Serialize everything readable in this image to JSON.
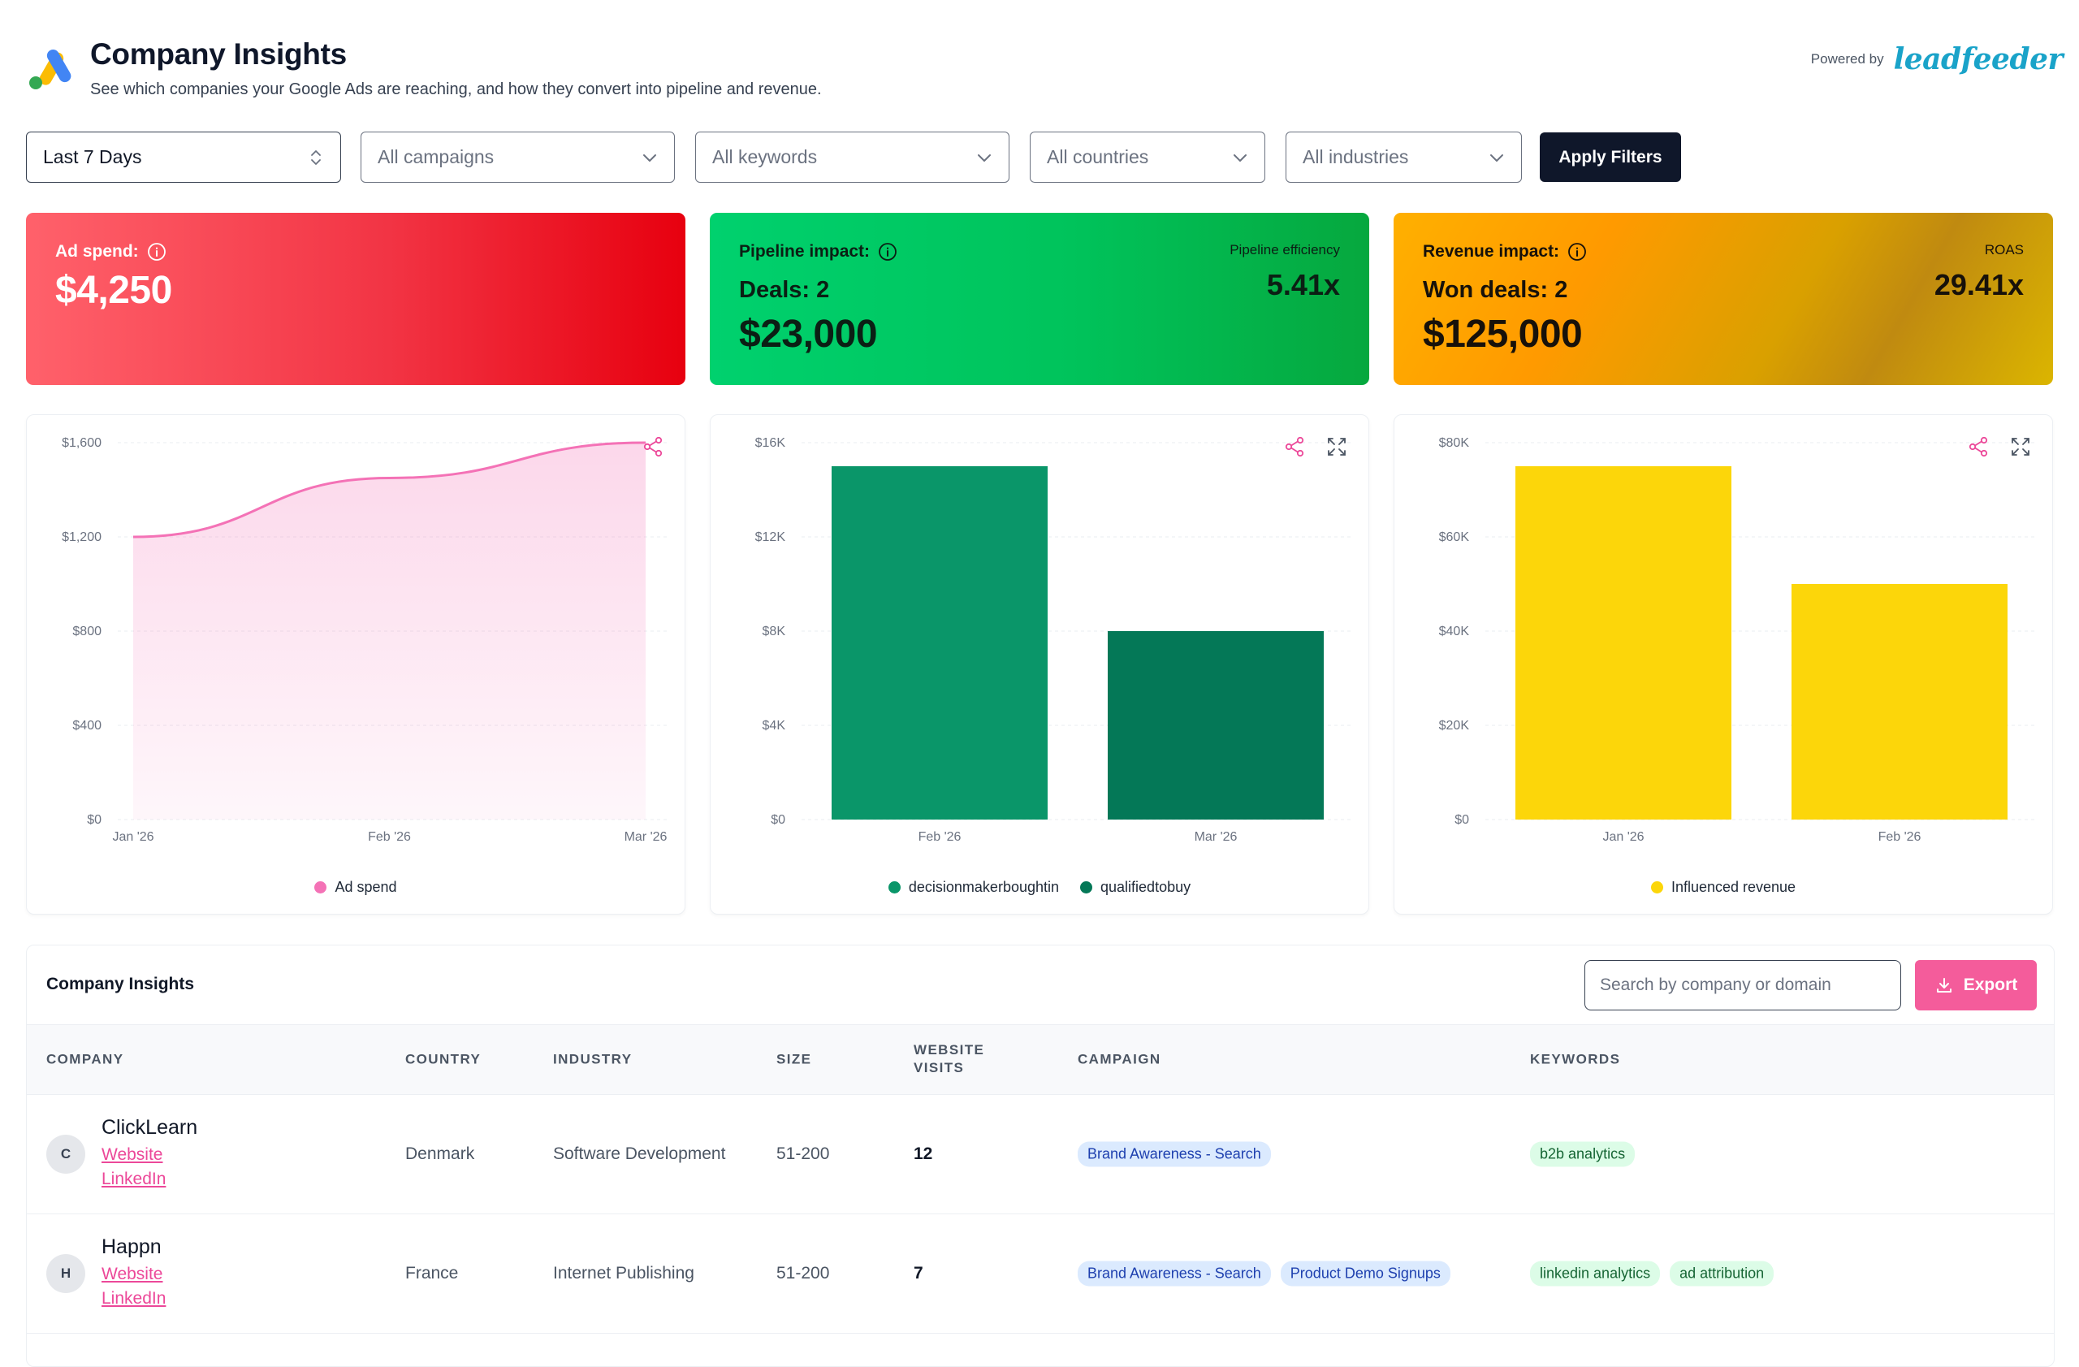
{
  "header": {
    "title": "Company Insights",
    "subtitle": "See which companies your Google Ads are reaching, and how they convert into pipeline and revenue.",
    "powered_by_label": "Powered by",
    "brand": "leadfeeder"
  },
  "filters": {
    "period": "Last 7 Days",
    "campaigns": "All campaigns",
    "keywords": "All keywords",
    "countries": "All countries",
    "industries": "All industries",
    "apply_label": "Apply Filters"
  },
  "kpis": {
    "ad_spend": {
      "label": "Ad spend:",
      "value": "$4,250"
    },
    "pipeline": {
      "label": "Pipeline impact:",
      "deals": "Deals: 2",
      "amount": "$23,000",
      "metric_label": "Pipeline efficiency",
      "metric_value": "5.41x"
    },
    "revenue": {
      "label": "Revenue impact:",
      "deals": "Won deals: 2",
      "amount": "$125,000",
      "metric_label": "ROAS",
      "metric_value": "29.41x"
    }
  },
  "colors": {
    "pink": "#f472b6",
    "green_1": "#0a9669",
    "green_2": "#047857",
    "yellow": "#fcd60a"
  },
  "chart_data": [
    {
      "type": "area",
      "x": [
        "Jan '26",
        "Feb '26",
        "Mar '26"
      ],
      "series": [
        {
          "name": "Ad spend",
          "values": [
            1200,
            1450,
            1600
          ],
          "color": "#f472b6"
        }
      ],
      "ylim": [
        0,
        1600
      ],
      "yticks": [
        "$0",
        "$400",
        "$800",
        "$1,200",
        "$1,600"
      ],
      "ytick_values": [
        0,
        400,
        800,
        1200,
        1600
      ],
      "grid": true,
      "legend": "bottom-center"
    },
    {
      "type": "bar",
      "categories": [
        "Feb '26",
        "Mar '26"
      ],
      "series": [
        {
          "name": "decisionmakerboughtin",
          "values": [
            15000,
            0
          ],
          "color": "#0a9669"
        },
        {
          "name": "qualifiedtobuy",
          "values": [
            0,
            8000
          ],
          "color": "#047857"
        }
      ],
      "ylim": [
        0,
        16000
      ],
      "yticks": [
        "$0",
        "$4K",
        "$8K",
        "$12K",
        "$16K"
      ],
      "ytick_values": [
        0,
        4000,
        8000,
        12000,
        16000
      ],
      "grid": true,
      "legend": "bottom-center"
    },
    {
      "type": "bar",
      "categories": [
        "Jan '26",
        "Feb '26"
      ],
      "series": [
        {
          "name": "Influenced revenue",
          "values": [
            75000,
            50000
          ],
          "color": "#fcd60a"
        }
      ],
      "ylim": [
        0,
        80000
      ],
      "yticks": [
        "$0",
        "$20K",
        "$40K",
        "$60K",
        "$80K"
      ],
      "ytick_values": [
        0,
        20000,
        40000,
        60000,
        80000
      ],
      "grid": true,
      "legend": "bottom-center"
    }
  ],
  "table": {
    "title": "Company Insights",
    "search_placeholder": "Search by company or domain",
    "export_label": "Export",
    "columns": {
      "company": "COMPANY",
      "country": "COUNTRY",
      "industry": "INDUSTRY",
      "size": "SIZE",
      "visits_1": "WEBSITE",
      "visits_2": "VISITS",
      "campaign": "CAMPAIGN",
      "keywords": "KEYWORDS"
    },
    "rows": [
      {
        "initial": "C",
        "name": "ClickLearn",
        "website": "Website",
        "linkedin": "LinkedIn",
        "country": "Denmark",
        "industry": "Software Development",
        "size": "51-200",
        "visits": "12",
        "campaigns": [
          "Brand Awareness - Search"
        ],
        "keywords": [
          "b2b analytics"
        ]
      },
      {
        "initial": "H",
        "name": "Happn",
        "website": "Website",
        "linkedin": "LinkedIn",
        "country": "France",
        "industry": "Internet Publishing",
        "size": "51-200",
        "visits": "7",
        "campaigns": [
          "Brand Awareness - Search",
          "Product Demo Signups"
        ],
        "keywords": [
          "linkedin analytics",
          "ad attribution"
        ]
      }
    ]
  }
}
